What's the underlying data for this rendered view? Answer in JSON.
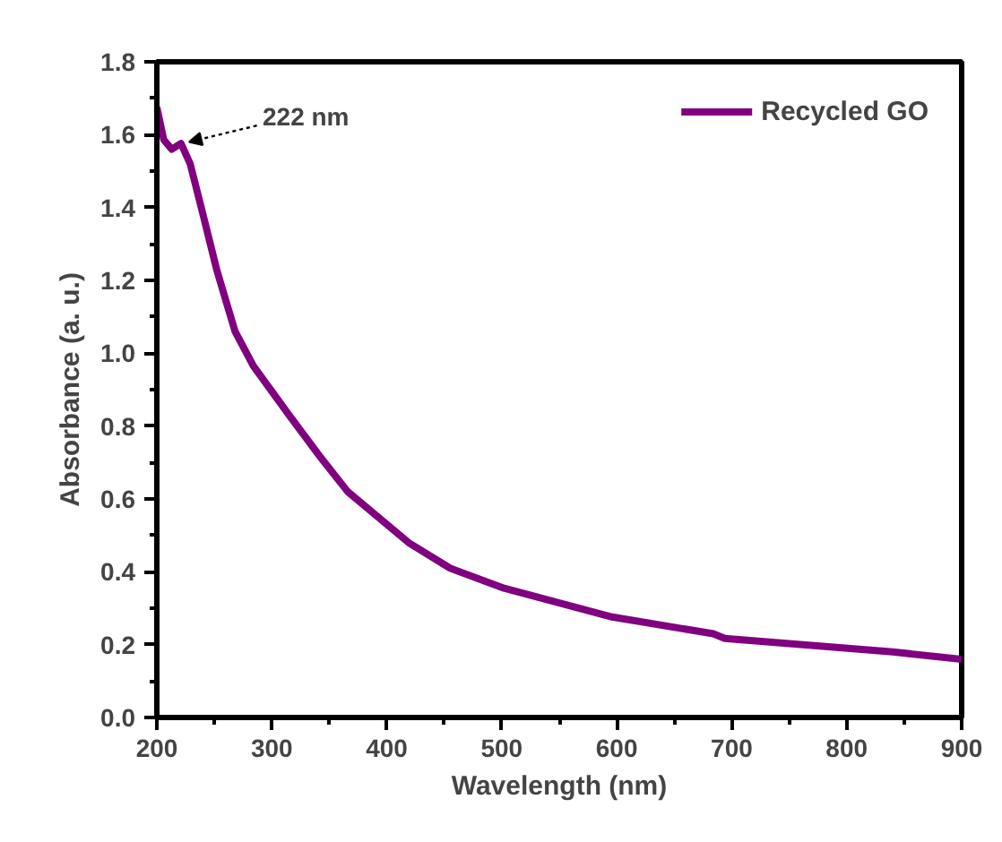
{
  "chart_data": {
    "type": "line",
    "xlabel": "Wavelength (nm)",
    "ylabel": "Absorbance (a. u.)",
    "xlim": [
      200,
      900
    ],
    "ylim": [
      0,
      1.8
    ],
    "xticks": [
      200,
      300,
      400,
      500,
      600,
      700,
      800,
      900
    ],
    "yticks": [
      {
        "value": 0,
        "label": "0.0"
      },
      {
        "value": 0.2,
        "label": "0.2"
      },
      {
        "value": 0.4,
        "label": "0.4"
      },
      {
        "value": 0.6,
        "label": "0.6"
      },
      {
        "value": 0.8,
        "label": "0.8"
      },
      {
        "value": 1.0,
        "label": "1.0"
      },
      {
        "value": 1.2,
        "label": "1.2"
      },
      {
        "value": 1.4,
        "label": "1.4"
      },
      {
        "value": 1.6,
        "label": "1.6"
      },
      {
        "value": 1.8,
        "label": "1.8"
      }
    ],
    "grid": false,
    "legend": "top right",
    "marker": "none",
    "line_style": "solid",
    "series": [
      {
        "name": "Recycled GO",
        "color": "#800080",
        "x": [
          200,
          206,
          213,
          221,
          229,
          241,
          252,
          268,
          284,
          315,
          341,
          366,
          419,
          455,
          502,
          596,
          684,
          694,
          762,
          840,
          900
        ],
        "values": [
          1.675,
          1.586,
          1.56,
          1.576,
          1.52,
          1.37,
          1.23,
          1.06,
          0.965,
          0.83,
          0.72,
          0.62,
          0.48,
          0.41,
          0.355,
          0.276,
          0.23,
          0.217,
          0.2,
          0.18,
          0.16
        ]
      }
    ],
    "annotations": [
      {
        "text": "222 nm",
        "x": 222,
        "y": 1.58
      }
    ]
  }
}
